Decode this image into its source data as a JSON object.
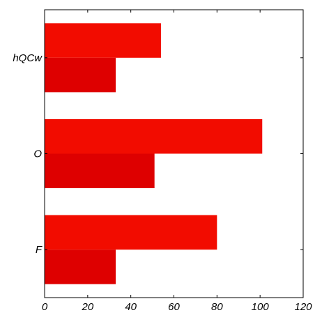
{
  "chart_data": {
    "type": "bar",
    "orientation": "horizontal",
    "categories": [
      "F",
      "O",
      "hQCw"
    ],
    "series": [
      {
        "values": [
          33,
          51,
          33
        ],
        "color": "#de0000"
      },
      {
        "values": [
          80,
          101,
          54
        ],
        "color": "#f20c00"
      }
    ],
    "xlim": [
      0,
      120
    ],
    "xticks": [
      0,
      20,
      40,
      60,
      80,
      100,
      120
    ],
    "xtick_labels": [
      "0",
      "20",
      "40",
      "60",
      "80",
      "100",
      "120"
    ],
    "title": "",
    "xlabel": "",
    "ylabel": "",
    "grid": false,
    "legend": "none"
  }
}
